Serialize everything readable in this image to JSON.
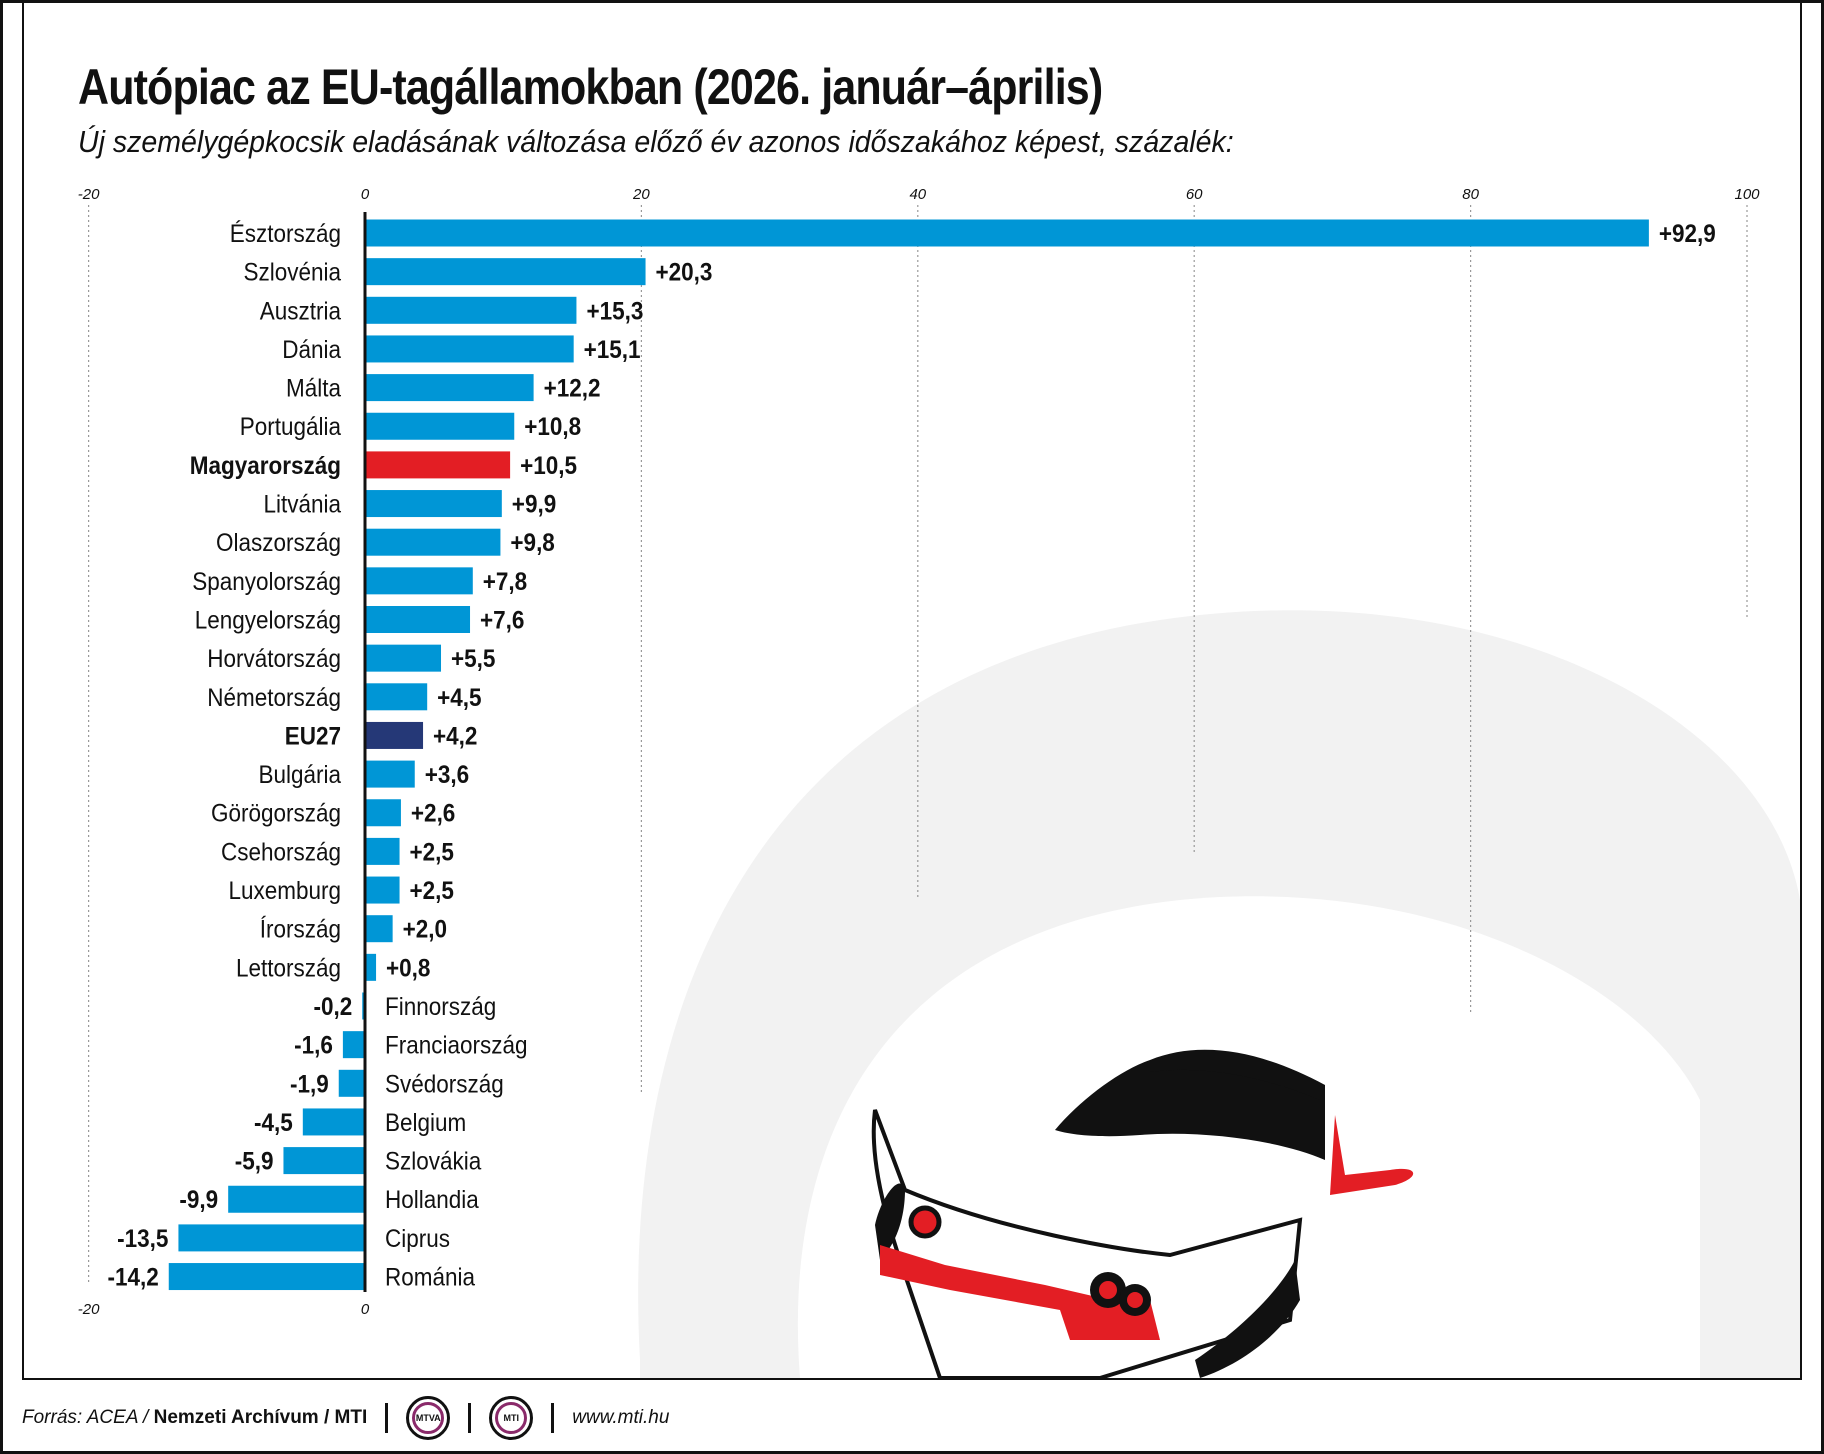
{
  "title": "Autópiac az EU-tagállamokban (2026. január–április)",
  "subtitle": "Új személygépkocsik eladásának változása előző év azonos időszakához képest, százalék:",
  "footer": {
    "source_prefix": "Forrás: ACEA /",
    "source_bold": "Nemzeti Archívum / MTI",
    "logo1": "MTVA",
    "logo2": "MTI",
    "url": "www.mti.hu"
  },
  "colors": {
    "bar": "#0096d6",
    "highlight_hu": "#e31e24",
    "highlight_eu": "#253877",
    "grid": "#999999"
  },
  "chart_data": {
    "type": "bar",
    "orientation": "horizontal",
    "title": "Autópiac az EU-tagállamokban (2026. január–április)",
    "xlim": [
      -20,
      100
    ],
    "top_ticks": [
      "-20",
      "0",
      "20",
      "40",
      "60",
      "80",
      "100"
    ],
    "bottom_ticks": [
      "-20",
      "0"
    ],
    "grid": "dotted vertical",
    "categories": [
      "Észtország",
      "Szlovénia",
      "Ausztria",
      "Dánia",
      "Málta",
      "Portugália",
      "Magyarország",
      "Litvánia",
      "Olaszország",
      "Spanyolország",
      "Lengyelország",
      "Horvátország",
      "Németország",
      "EU27",
      "Bulgária",
      "Görögország",
      "Csehország",
      "Luxemburg",
      "Írország",
      "Lettország",
      "Finnország",
      "Franciaország",
      "Svédország",
      "Belgium",
      "Szlovákia",
      "Hollandia",
      "Ciprus",
      "Románia"
    ],
    "values": [
      92.9,
      20.3,
      15.3,
      15.1,
      12.2,
      10.8,
      10.5,
      9.9,
      9.8,
      7.8,
      7.6,
      5.5,
      4.5,
      4.2,
      3.6,
      2.6,
      2.5,
      2.5,
      2.0,
      0.8,
      -0.2,
      -1.6,
      -1.9,
      -4.5,
      -5.9,
      -9.9,
      -13.5,
      -14.2
    ],
    "labels": [
      "+92,9",
      "+20,3",
      "+15,3",
      "+15,1",
      "+12,2",
      "+10,8",
      "+10,5",
      "+9,9",
      "+9,8",
      "+7,8",
      "+7,6",
      "+5,5",
      "+4,5",
      "+4,2",
      "+3,6",
      "+2,6",
      "+2,5",
      "+2,5",
      "+2,0",
      "+0,8",
      "-0,2",
      "-1,6",
      "-1,9",
      "-4,5",
      "-5,9",
      "-9,9",
      "-13,5",
      "-14,2"
    ],
    "highlight": {
      "Magyarország": "highlight_hu",
      "EU27": "highlight_eu"
    },
    "bold_categories": [
      "Magyarország",
      "EU27"
    ]
  }
}
